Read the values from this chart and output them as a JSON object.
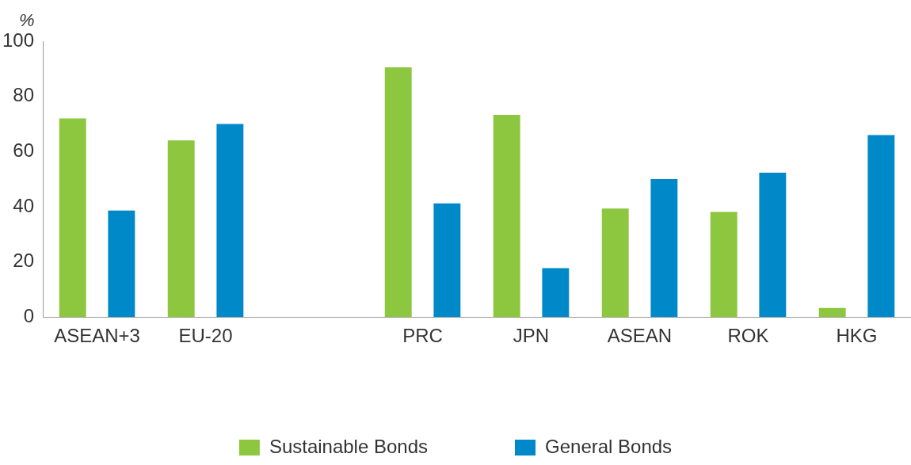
{
  "chart_data": {
    "type": "bar",
    "ylabel": "%",
    "categories": [
      "ASEAN+3",
      "EU-20",
      null,
      "PRC",
      "JPN",
      "ASEAN",
      "ROK",
      "HKG"
    ],
    "series": [
      {
        "name": "Sustainable Bonds",
        "color": "#8dc63f",
        "values": [
          72,
          64,
          null,
          90.5,
          73.3,
          39.3,
          38.1,
          3.3
        ]
      },
      {
        "name": "General Bonds",
        "color": "#0089c8",
        "values": [
          38.6,
          70,
          null,
          41.2,
          17.7,
          50,
          52.3,
          66
        ]
      }
    ],
    "ylim": [
      0,
      100
    ],
    "yticks": [
      0,
      20,
      40,
      60,
      80,
      100
    ],
    "grid": false,
    "legend": "bottom"
  }
}
